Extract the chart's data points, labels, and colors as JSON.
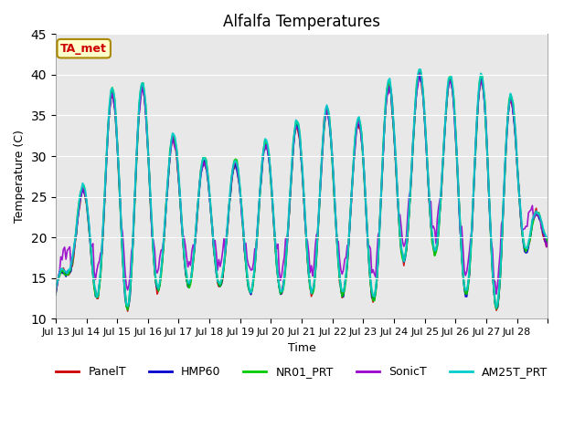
{
  "title": "Alfalfa Temperatures",
  "ylabel": "Temperature (C)",
  "xlabel": "Time",
  "annotation": "TA_met",
  "annotation_color": "#cc0000",
  "annotation_bg": "#ffffcc",
  "annotation_border": "#aa8800",
  "ylim": [
    10,
    45
  ],
  "yticks": [
    10,
    15,
    20,
    25,
    30,
    35,
    40,
    45
  ],
  "bg_color": "#e8e8e8",
  "series": [
    {
      "name": "PanelT",
      "color": "#cc0000",
      "lw": 1.2
    },
    {
      "name": "HMP60",
      "color": "#0000cc",
      "lw": 1.2
    },
    {
      "name": "NR01_PRT",
      "color": "#00cc00",
      "lw": 1.5
    },
    {
      "name": "SonicT",
      "color": "#9900cc",
      "lw": 1.2
    },
    {
      "name": "AM25T_PRT",
      "color": "#00cccc",
      "lw": 1.5
    }
  ],
  "xtick_labels": [
    "Jul 13",
    "Jul 14",
    "Jul 15",
    "Jul 16",
    "Jul 17",
    "Jul 18",
    "Jul 19",
    "Jul 20",
    "Jul 21",
    "Jul 22",
    "Jul 23",
    "Jul 24",
    "Jul 25",
    "Jul 26",
    "Jul 27",
    "Jul 28"
  ],
  "grid_color": "#ffffff",
  "grid_lw": 0.8
}
